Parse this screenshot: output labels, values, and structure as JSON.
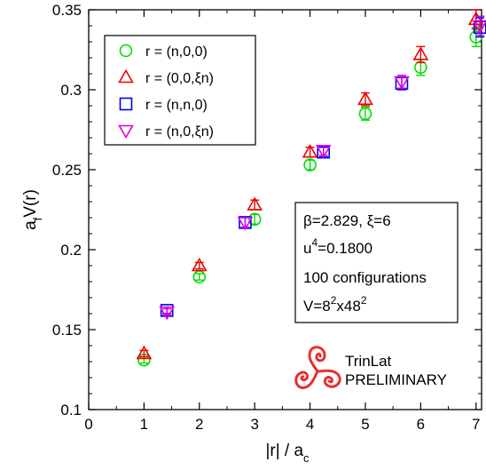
{
  "chart_data": {
    "type": "scatter",
    "title": "",
    "xlabel": "|r| / a",
    "xlabel_sub": "c",
    "ylabel": "a",
    "ylabel_sub": "f",
    "ylabel_tail": "V(r)",
    "xlim": [
      0,
      7.1
    ],
    "ylim": [
      0.1,
      0.35
    ],
    "x_ticks": [
      0,
      1,
      2,
      3,
      4,
      5,
      6,
      7
    ],
    "y_ticks": [
      0.1,
      0.15,
      0.2,
      0.25,
      0.3,
      0.35
    ],
    "grid": false,
    "legend_position": "top-left",
    "series": [
      {
        "name": "r = (n,0,0)",
        "marker": "circle",
        "color": "#00dd00",
        "points": [
          {
            "x": 1,
            "y": 0.131,
            "err": 0.002
          },
          {
            "x": 2,
            "y": 0.183,
            "err": 0.002
          },
          {
            "x": 3,
            "y": 0.219,
            "err": 0.003
          },
          {
            "x": 4,
            "y": 0.253,
            "err": 0.003
          },
          {
            "x": 5,
            "y": 0.285,
            "err": 0.004
          },
          {
            "x": 6,
            "y": 0.314,
            "err": 0.005
          },
          {
            "x": 7,
            "y": 0.333,
            "err": 0.006
          }
        ]
      },
      {
        "name": "r = (0,0,ξn)",
        "marker": "triangle-up",
        "color": "#ee0000",
        "points": [
          {
            "x": 1,
            "y": 0.135,
            "err": 0.002
          },
          {
            "x": 2,
            "y": 0.19,
            "err": 0.002
          },
          {
            "x": 3,
            "y": 0.228,
            "err": 0.003
          },
          {
            "x": 4,
            "y": 0.261,
            "err": 0.003
          },
          {
            "x": 5,
            "y": 0.294,
            "err": 0.004
          },
          {
            "x": 6,
            "y": 0.322,
            "err": 0.005
          },
          {
            "x": 7,
            "y": 0.344,
            "err": 0.006
          }
        ]
      },
      {
        "name": "r = (n,n,0)",
        "marker": "square",
        "color": "#0000ee",
        "points": [
          {
            "x": 1.414,
            "y": 0.162,
            "err": 0.002
          },
          {
            "x": 2.828,
            "y": 0.217,
            "err": 0.003
          },
          {
            "x": 4.243,
            "y": 0.261,
            "err": 0.003
          },
          {
            "x": 5.657,
            "y": 0.304,
            "err": 0.004
          },
          {
            "x": 7.071,
            "y": 0.339,
            "err": 0.006
          }
        ]
      },
      {
        "name": "r = (n,0,ξn)",
        "marker": "triangle-down",
        "color": "#dd00dd",
        "points": [
          {
            "x": 1.414,
            "y": 0.161,
            "err": 0.002
          },
          {
            "x": 2.828,
            "y": 0.217,
            "err": 0.003
          },
          {
            "x": 4.243,
            "y": 0.262,
            "err": 0.003
          },
          {
            "x": 5.657,
            "y": 0.305,
            "err": 0.004
          },
          {
            "x": 7.071,
            "y": 0.34,
            "err": 0.006
          }
        ]
      }
    ],
    "info_box": {
      "line1": "β=2.829, ξ=6",
      "line2_base": "u",
      "line2_sup": "4",
      "line2_tail": "=0.1800",
      "line3": "100 configurations",
      "line4_a": "V=8",
      "line4_sup1": "2",
      "line4_b": "x48",
      "line4_sup2": "2"
    },
    "logo": {
      "line1": "TrinLat",
      "line2": "PRELIMINARY",
      "color": "#e83030"
    }
  }
}
